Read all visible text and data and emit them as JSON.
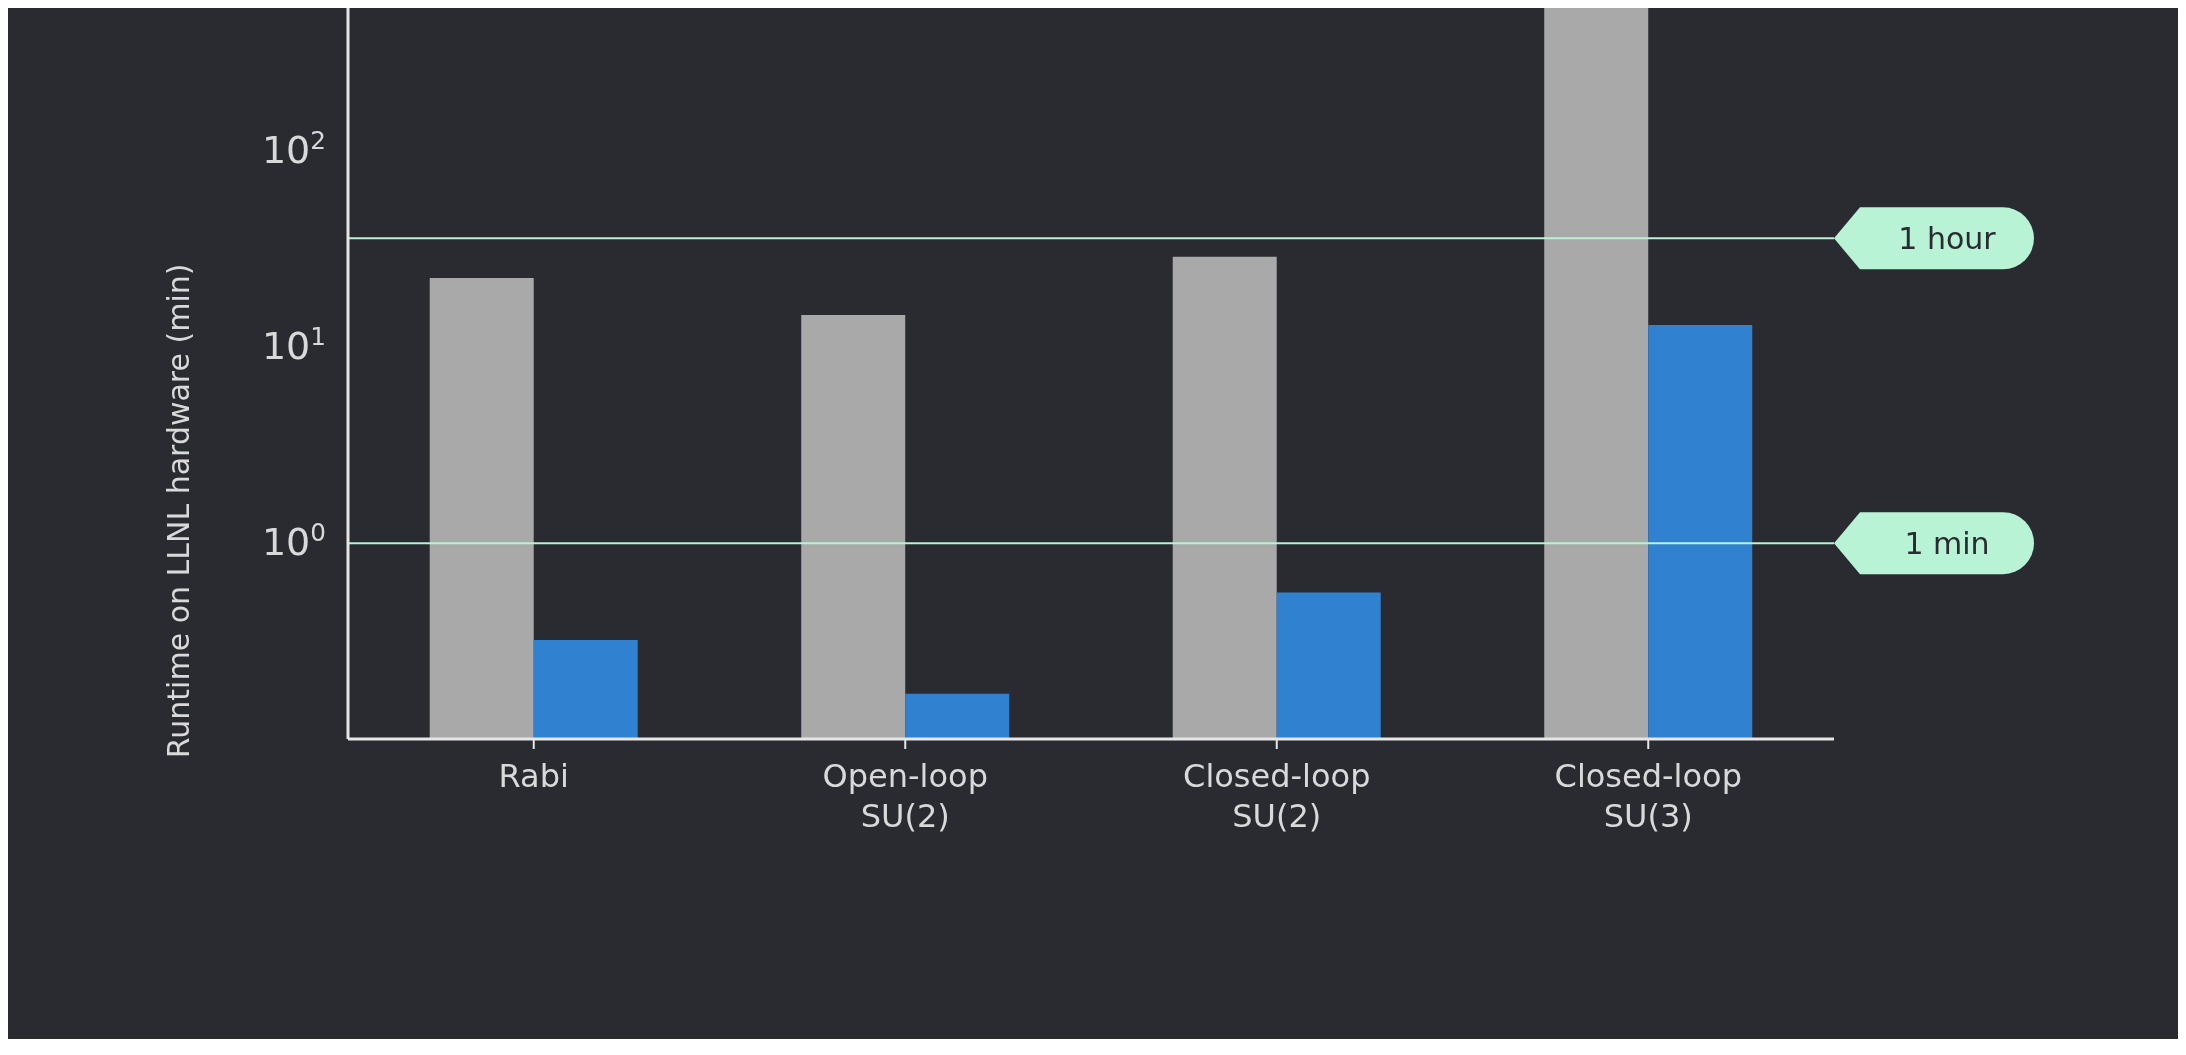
{
  "chart_data": {
    "type": "bar",
    "ylabel": "Runtime on LLNL hardware (min)",
    "categories": [
      "Rabi",
      "Open-loop\nSU(2)",
      "Closed-loop\nSU(2)",
      "Closed-loop\nSU(3)"
    ],
    "series": [
      {
        "color": "#a9a9a9",
        "values": [
          22.6,
          14.6,
          29,
          540
        ]
      },
      {
        "color": "#3082d0",
        "values": [
          0.32,
          0.17,
          0.56,
          13
        ]
      }
    ],
    "log": true,
    "ylim": [
      0.1,
      540
    ],
    "yticks": [
      {
        "value": 1,
        "label": "10$^{0}$"
      },
      {
        "value": 10,
        "label": "10$^{1}$"
      },
      {
        "value": 100,
        "label": "10$^{2}$"
      }
    ],
    "ref_lines": [
      {
        "axis": "y",
        "value": 36,
        "label": "1 hour",
        "color": "#b9f3d6"
      },
      {
        "axis": "y",
        "value": 1,
        "label": "1 min",
        "color": "#b9f3d6"
      }
    ],
    "grid": false
  }
}
